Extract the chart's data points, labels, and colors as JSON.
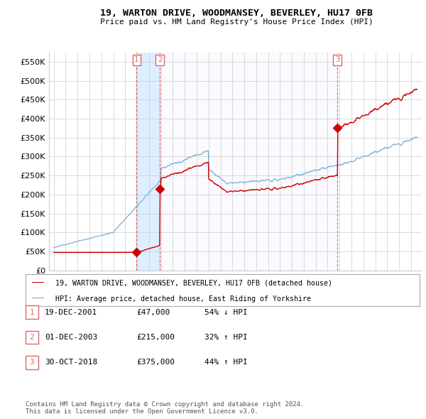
{
  "title": "19, WARTON DRIVE, WOODMANSEY, BEVERLEY, HU17 0FB",
  "subtitle": "Price paid vs. HM Land Registry's House Price Index (HPI)",
  "sale_labels": [
    "1",
    "2",
    "3"
  ],
  "legend_line1": "19, WARTON DRIVE, WOODMANSEY, BEVERLEY, HU17 0FB (detached house)",
  "legend_line2": "HPI: Average price, detached house, East Riding of Yorkshire",
  "table_rows": [
    [
      "1",
      "19-DEC-2001",
      "£47,000",
      "54% ↓ HPI"
    ],
    [
      "2",
      "01-DEC-2003",
      "£215,000",
      "32% ↑ HPI"
    ],
    [
      "3",
      "30-OCT-2018",
      "£375,000",
      "44% ↑ HPI"
    ]
  ],
  "footer": "Contains HM Land Registry data © Crown copyright and database right 2024.\nThis data is licensed under the Open Government Licence v3.0.",
  "house_color": "#cc0000",
  "hpi_color": "#7aadd4",
  "vline_color": "#dd6666",
  "shade_color": "#ddeeff",
  "background_color": "#ffffff",
  "plot_bg_color": "#ffffff",
  "grid_color": "#cccccc",
  "ylim": [
    0,
    575000
  ],
  "yticks": [
    0,
    50000,
    100000,
    150000,
    200000,
    250000,
    300000,
    350000,
    400000,
    450000,
    500000,
    550000
  ],
  "sale1_x": 2001.96,
  "sale2_x": 2003.92,
  "sale3_x": 2018.83,
  "sale1_price": 47000,
  "sale2_price": 215000,
  "sale3_price": 375000,
  "hpi_start_year": 1995.0,
  "hpi_end_year": 2025.4,
  "xlim_left": 1994.6,
  "xlim_right": 2025.9
}
